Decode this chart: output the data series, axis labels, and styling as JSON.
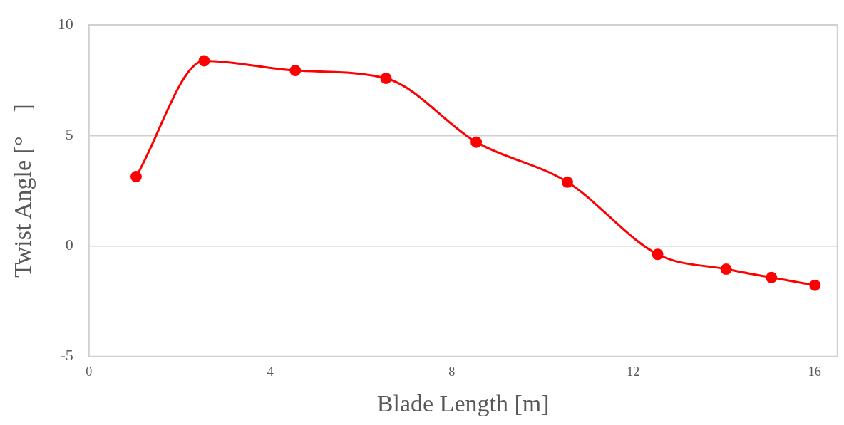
{
  "chart_data": {
    "type": "line",
    "xlabel": "Blade Length [m]",
    "ylabel": "Twist Angle [°　]",
    "x": [
      1.04,
      2.54,
      4.55,
      6.55,
      8.54,
      10.55,
      12.54,
      14.05,
      15.05,
      16.01
    ],
    "series": [
      {
        "color": "#ff0000",
        "values": [
          3.14,
          8.38,
          7.94,
          7.59,
          4.7,
          2.89,
          -0.38,
          -1.05,
          -1.43,
          -1.78
        ]
      }
    ],
    "xlim": [
      0,
      16.5
    ],
    "xticks": [
      0,
      4,
      8,
      12,
      16
    ],
    "ylim": [
      -5,
      10
    ],
    "yticks": [
      -5,
      0,
      5,
      10
    ],
    "grid": "y",
    "legend": false,
    "marker": "circle",
    "line_style": "solid"
  }
}
